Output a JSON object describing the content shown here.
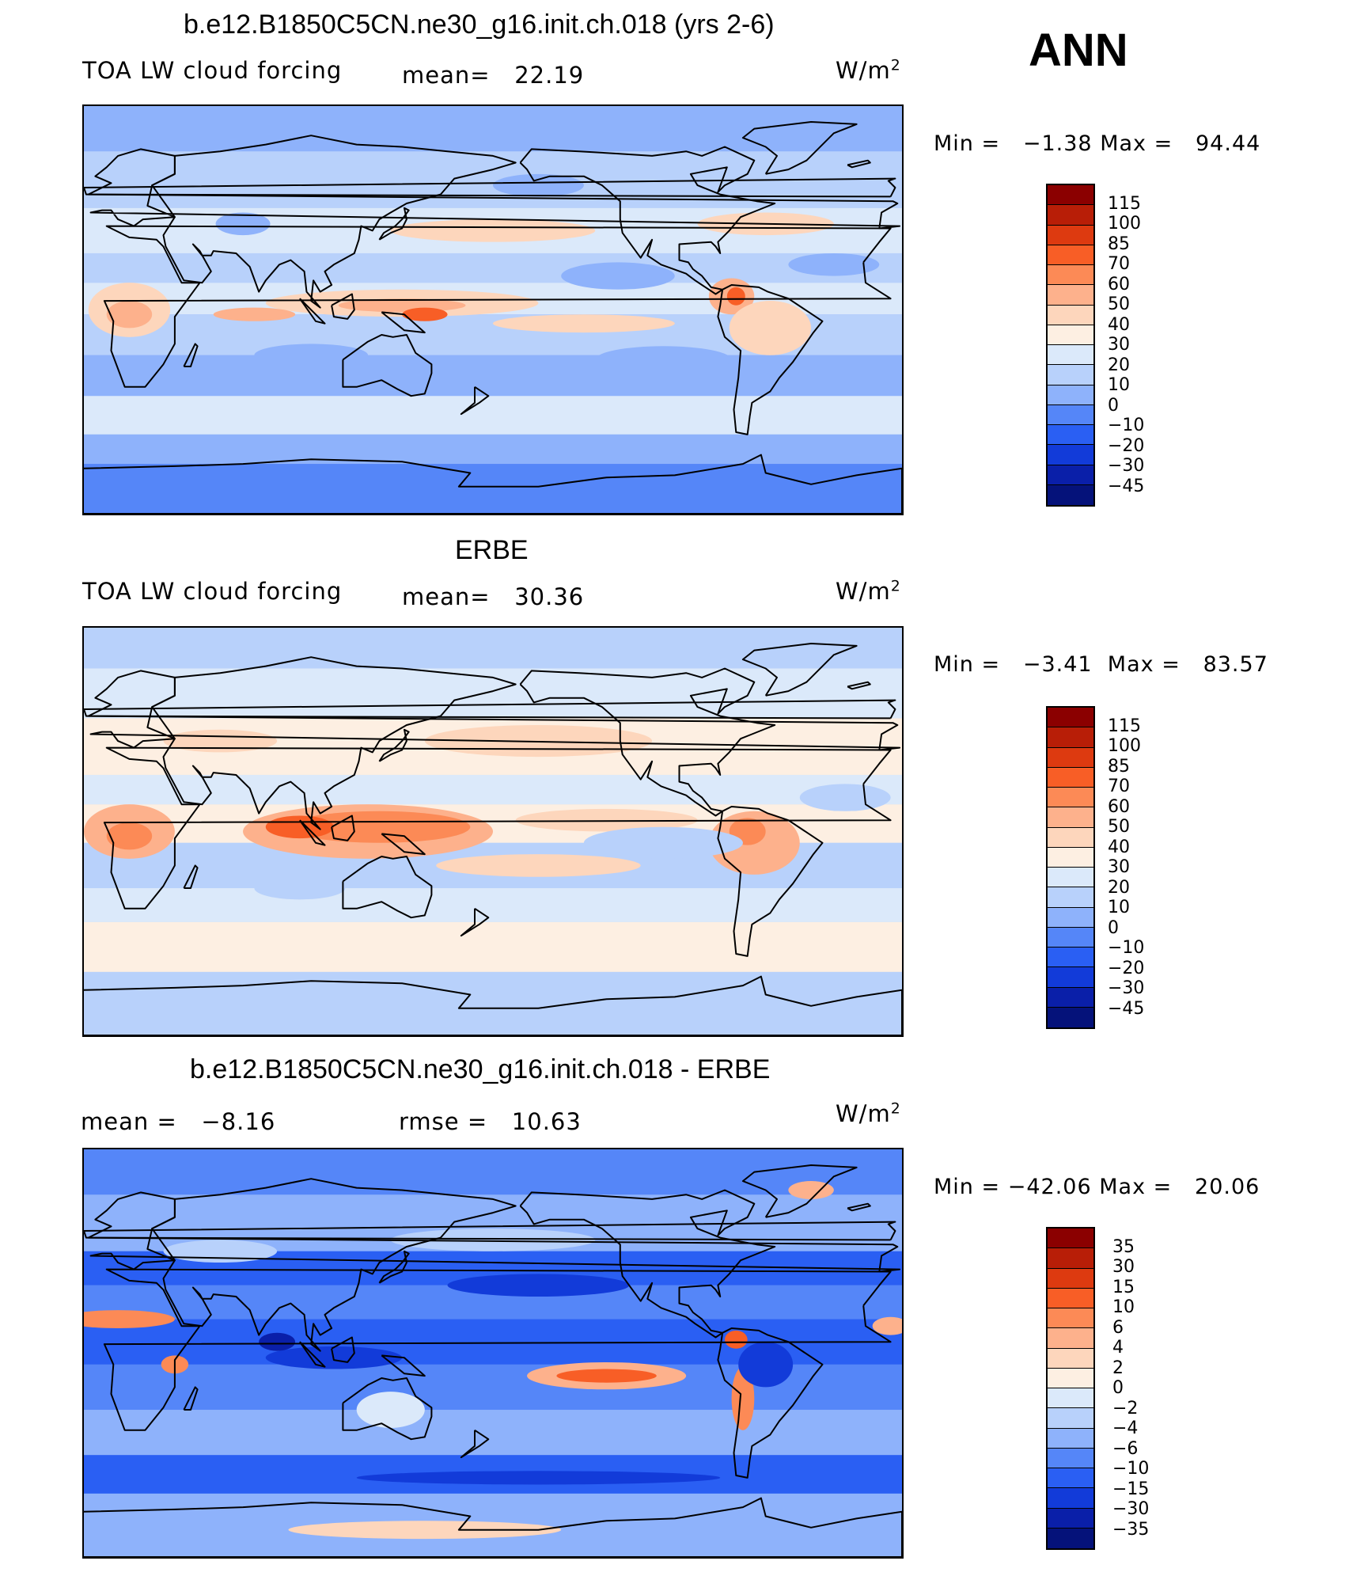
{
  "season": "ANN",
  "units_prefix": "W/m",
  "units_exp": "2",
  "panels": [
    {
      "id": "model",
      "title": "b.e12.B1850C5CN.ne30_g16.init.ch.018 (yrs 2-6)",
      "left_label": "TOA LW cloud forcing",
      "mean_label": "mean=",
      "mean_value": "22.19",
      "min_label": "Min =",
      "min_value": "−1.38",
      "max_label": "Max =",
      "max_value": "94.44",
      "colorbar": {
        "labels": [
          "115",
          "100",
          "85",
          "70",
          "60",
          "50",
          "40",
          "30",
          "20",
          "10",
          "0",
          "−10",
          "−20",
          "−30",
          "−45"
        ],
        "colors": [
          "#8b0000",
          "#b81e07",
          "#dd3a10",
          "#f85e26",
          "#fc8a56",
          "#fdb18c",
          "#fdd6bc",
          "#fdefe2",
          "#dbe9fa",
          "#b8d1fb",
          "#8eb2fb",
          "#5586f8",
          "#2a5ff3",
          "#123bd9",
          "#0a1fa9",
          "#05127a"
        ]
      },
      "field": {
        "background": "#8eb2fb",
        "bands": [
          {
            "lat0": 90,
            "lat1": 70,
            "color": "#8eb2fb"
          },
          {
            "lat0": 70,
            "lat1": 45,
            "color": "#b8d1fb"
          },
          {
            "lat0": 45,
            "lat1": 25,
            "color": "#dbe9fa"
          },
          {
            "lat0": 25,
            "lat1": 12,
            "color": "#b8d1fb"
          },
          {
            "lat0": 12,
            "lat1": -2,
            "color": "#dbe9fa"
          },
          {
            "lat0": -2,
            "lat1": -20,
            "color": "#b8d1fb"
          },
          {
            "lat0": -20,
            "lat1": -38,
            "color": "#8eb2fb"
          },
          {
            "lat0": -38,
            "lat1": -55,
            "color": "#dbe9fa"
          },
          {
            "lat0": -55,
            "lat1": -68,
            "color": "#8eb2fb"
          },
          {
            "lat0": -68,
            "lat1": -90,
            "color": "#5586f8"
          }
        ],
        "blobs": [
          {
            "lon": 180,
            "lat": 35,
            "rx": 45,
            "ry": 5,
            "color": "#fdd6bc"
          },
          {
            "lon": 300,
            "lat": 38,
            "rx": 30,
            "ry": 5,
            "color": "#fdd6bc"
          },
          {
            "lon": 140,
            "lat": 3,
            "rx": 60,
            "ry": 6,
            "color": "#fdd6bc"
          },
          {
            "lon": 140,
            "lat": 2,
            "rx": 28,
            "ry": 3,
            "color": "#fdb18c"
          },
          {
            "lon": 150,
            "lat": -2,
            "rx": 10,
            "ry": 3,
            "color": "#f85e26"
          },
          {
            "lon": 220,
            "lat": -6,
            "rx": 40,
            "ry": 4,
            "color": "#fdd6bc"
          },
          {
            "lon": 285,
            "lat": 6,
            "rx": 10,
            "ry": 8,
            "color": "#fdb18c"
          },
          {
            "lon": 287,
            "lat": 6,
            "rx": 4,
            "ry": 4,
            "color": "#f85e26"
          },
          {
            "lon": 302,
            "lat": -8,
            "rx": 18,
            "ry": 12,
            "color": "#fdd6bc"
          },
          {
            "lon": 20,
            "lat": 0,
            "rx": 18,
            "ry": 12,
            "color": "#fdd6bc"
          },
          {
            "lon": 20,
            "lat": -2,
            "rx": 10,
            "ry": 6,
            "color": "#fdb18c"
          },
          {
            "lon": 75,
            "lat": -2,
            "rx": 18,
            "ry": 3,
            "color": "#fdb18c"
          },
          {
            "lon": 70,
            "lat": 38,
            "rx": 12,
            "ry": 5,
            "color": "#8eb2fb"
          },
          {
            "lon": 200,
            "lat": 55,
            "rx": 20,
            "ry": 5,
            "color": "#8eb2fb"
          },
          {
            "lon": 235,
            "lat": 15,
            "rx": 25,
            "ry": 6,
            "color": "#8eb2fb"
          },
          {
            "lon": 330,
            "lat": 20,
            "rx": 20,
            "ry": 5,
            "color": "#8eb2fb"
          },
          {
            "lon": 255,
            "lat": -22,
            "rx": 30,
            "ry": 6,
            "color": "#8eb2fb"
          },
          {
            "lon": 100,
            "lat": -20,
            "rx": 25,
            "ry": 5,
            "color": "#8eb2fb"
          }
        ]
      }
    },
    {
      "id": "obs",
      "title": "ERBE",
      "left_label": "TOA LW cloud forcing",
      "mean_label": "mean=",
      "mean_value": "30.36",
      "min_label": "Min =",
      "min_value": "−3.41",
      "max_label": "Max =",
      "max_value": "83.57",
      "colorbar": {
        "labels": [
          "115",
          "100",
          "85",
          "70",
          "60",
          "50",
          "40",
          "30",
          "20",
          "10",
          "0",
          "−10",
          "−20",
          "−30",
          "−45"
        ],
        "colors": [
          "#8b0000",
          "#b81e07",
          "#dd3a10",
          "#f85e26",
          "#fc8a56",
          "#fdb18c",
          "#fdd6bc",
          "#fdefe2",
          "#dbe9fa",
          "#b8d1fb",
          "#8eb2fb",
          "#5586f8",
          "#2a5ff3",
          "#123bd9",
          "#0a1fa9",
          "#05127a"
        ]
      },
      "field": {
        "background": "#b8d1fb",
        "bands": [
          {
            "lat0": 90,
            "lat1": 72,
            "color": "#b8d1fb"
          },
          {
            "lat0": 72,
            "lat1": 50,
            "color": "#dbe9fa"
          },
          {
            "lat0": 50,
            "lat1": 25,
            "color": "#fdefe2"
          },
          {
            "lat0": 25,
            "lat1": 12,
            "color": "#dbe9fa"
          },
          {
            "lat0": 12,
            "lat1": -5,
            "color": "#fdefe2"
          },
          {
            "lat0": -5,
            "lat1": -25,
            "color": "#b8d1fb"
          },
          {
            "lat0": -25,
            "lat1": -40,
            "color": "#dbe9fa"
          },
          {
            "lat0": -40,
            "lat1": -62,
            "color": "#fdefe2"
          },
          {
            "lat0": -62,
            "lat1": -90,
            "color": "#b8d1fb"
          }
        ],
        "blobs": [
          {
            "lon": 125,
            "lat": 0,
            "rx": 55,
            "ry": 12,
            "color": "#fdb18c"
          },
          {
            "lon": 130,
            "lat": 2,
            "rx": 40,
            "ry": 7,
            "color": "#fc8a56"
          },
          {
            "lon": 95,
            "lat": 2,
            "rx": 15,
            "ry": 5,
            "color": "#f85e26"
          },
          {
            "lon": 20,
            "lat": 0,
            "rx": 20,
            "ry": 12,
            "color": "#fdb18c"
          },
          {
            "lon": 20,
            "lat": -2,
            "rx": 10,
            "ry": 6,
            "color": "#fc8a56"
          },
          {
            "lon": 295,
            "lat": -5,
            "rx": 20,
            "ry": 14,
            "color": "#fdb18c"
          },
          {
            "lon": 292,
            "lat": 0,
            "rx": 8,
            "ry": 6,
            "color": "#fc8a56"
          },
          {
            "lon": 200,
            "lat": -15,
            "rx": 45,
            "ry": 5,
            "color": "#fdd6bc"
          },
          {
            "lon": 200,
            "lat": 40,
            "rx": 50,
            "ry": 7,
            "color": "#fdd6bc"
          },
          {
            "lon": 60,
            "lat": 40,
            "rx": 25,
            "ry": 5,
            "color": "#fdd6bc"
          },
          {
            "lon": 230,
            "lat": 5,
            "rx": 40,
            "ry": 5,
            "color": "#fdd6bc"
          },
          {
            "lon": 255,
            "lat": -5,
            "rx": 35,
            "ry": 7,
            "color": "#b8d1fb"
          },
          {
            "lon": 335,
            "lat": 15,
            "rx": 20,
            "ry": 6,
            "color": "#b8d1fb"
          },
          {
            "lon": 95,
            "lat": -25,
            "rx": 20,
            "ry": 5,
            "color": "#b8d1fb"
          }
        ]
      }
    },
    {
      "id": "diff",
      "title": "b.e12.B1850C5CN.ne30_g16.init.ch.018 - ERBE",
      "left_label": "mean =",
      "left_value": "−8.16",
      "rmse_label": "rmse =",
      "rmse_value": "10.63",
      "min_label": "Min =",
      "min_value": "−42.06",
      "max_label": "Max =",
      "max_value": "20.06",
      "colorbar": {
        "labels": [
          "35",
          "30",
          "15",
          "10",
          "6",
          "4",
          "2",
          "0",
          "−2",
          "−4",
          "−6",
          "−10",
          "−15",
          "−30",
          "−35"
        ],
        "colors": [
          "#8b0000",
          "#b81e07",
          "#dd3a10",
          "#f85e26",
          "#fc8a56",
          "#fdb18c",
          "#fdd6bc",
          "#fdefe2",
          "#dbe9fa",
          "#b8d1fb",
          "#8eb2fb",
          "#5586f8",
          "#2a5ff3",
          "#123bd9",
          "#0a1fa9",
          "#05127a"
        ]
      },
      "field": {
        "background": "#5586f8",
        "bands": [
          {
            "lat0": 90,
            "lat1": 70,
            "color": "#5586f8"
          },
          {
            "lat0": 70,
            "lat1": 45,
            "color": "#8eb2fb"
          },
          {
            "lat0": 45,
            "lat1": 30,
            "color": "#2a5ff3"
          },
          {
            "lat0": 30,
            "lat1": 15,
            "color": "#5586f8"
          },
          {
            "lat0": 15,
            "lat1": -5,
            "color": "#2a5ff3"
          },
          {
            "lat0": -5,
            "lat1": -25,
            "color": "#5586f8"
          },
          {
            "lat0": -25,
            "lat1": -45,
            "color": "#8eb2fb"
          },
          {
            "lat0": -45,
            "lat1": -62,
            "color": "#2a5ff3"
          },
          {
            "lat0": -62,
            "lat1": -90,
            "color": "#8eb2fb"
          }
        ],
        "blobs": [
          {
            "lon": 230,
            "lat": -10,
            "rx": 35,
            "ry": 6,
            "color": "#fdb18c"
          },
          {
            "lon": 230,
            "lat": -10,
            "rx": 22,
            "ry": 3,
            "color": "#f85e26"
          },
          {
            "lon": 15,
            "lat": 15,
            "rx": 25,
            "ry": 4,
            "color": "#fc8a56"
          },
          {
            "lon": 290,
            "lat": -20,
            "rx": 5,
            "ry": 14,
            "color": "#fc8a56"
          },
          {
            "lon": 287,
            "lat": 6,
            "rx": 5,
            "ry": 4,
            "color": "#f85e26"
          },
          {
            "lon": 40,
            "lat": -5,
            "rx": 6,
            "ry": 4,
            "color": "#fc8a56"
          },
          {
            "lon": 355,
            "lat": 12,
            "rx": 8,
            "ry": 4,
            "color": "#fdb18c"
          },
          {
            "lon": 320,
            "lat": 72,
            "rx": 10,
            "ry": 4,
            "color": "#fdb18c"
          },
          {
            "lon": 135,
            "lat": -25,
            "rx": 15,
            "ry": 8,
            "color": "#dbe9fa"
          },
          {
            "lon": 180,
            "lat": 50,
            "rx": 45,
            "ry": 5,
            "color": "#b8d1fb"
          },
          {
            "lon": 110,
            "lat": -2,
            "rx": 30,
            "ry": 5,
            "color": "#123bd9"
          },
          {
            "lon": 85,
            "lat": 5,
            "rx": 8,
            "ry": 4,
            "color": "#0a1fa9"
          },
          {
            "lon": 200,
            "lat": 30,
            "rx": 40,
            "ry": 5,
            "color": "#123bd9"
          },
          {
            "lon": 300,
            "lat": -5,
            "rx": 12,
            "ry": 10,
            "color": "#123bd9"
          },
          {
            "lon": 150,
            "lat": -78,
            "rx": 60,
            "ry": 4,
            "color": "#fdd6bc"
          },
          {
            "lon": 200,
            "lat": -55,
            "rx": 80,
            "ry": 3,
            "color": "#123bd9"
          },
          {
            "lon": 60,
            "lat": 45,
            "rx": 25,
            "ry": 5,
            "color": "#b8d1fb"
          }
        ]
      }
    }
  ]
}
